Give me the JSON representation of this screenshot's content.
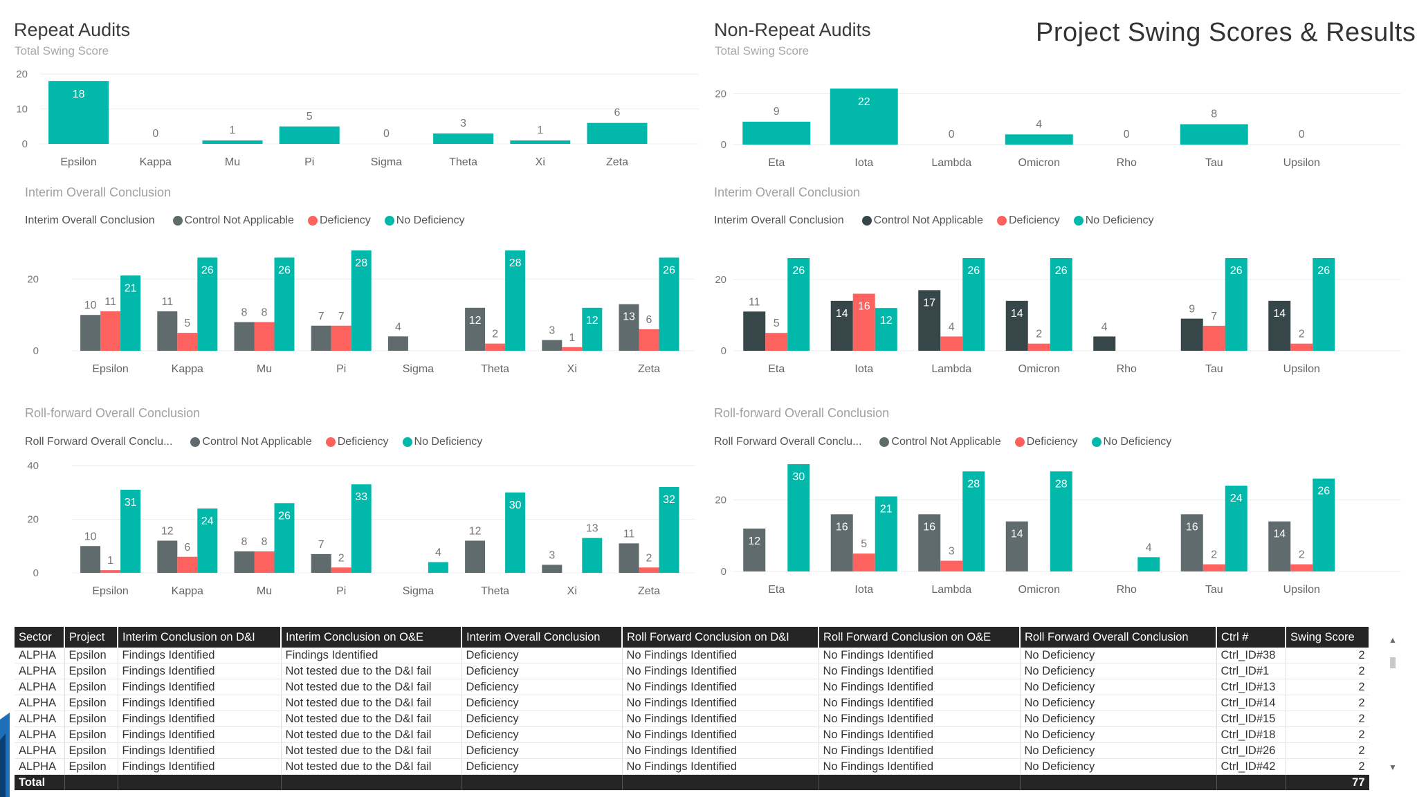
{
  "page_title": "Project Swing Scores & Results",
  "colors": {
    "teal": "#01B8AA",
    "dark": "#374649",
    "gray": "#5F6B6D",
    "red": "#FD625E"
  },
  "legend_labels": {
    "cna": "Control Not Applicable",
    "def": "Deficiency",
    "nodef": "No Deficiency"
  },
  "repeat": {
    "title": "Repeat Audits",
    "subtitle": "Total Swing Score",
    "interim_title": "Interim Overall Conclusion",
    "interim_legend_title": "Interim Overall Conclusion",
    "rollforward_title": "Roll-forward Overall Conclusion",
    "rollforward_legend_title": "Roll Forward Overall Conclu..."
  },
  "nonrepeat": {
    "title": "Non-Repeat Audits",
    "subtitle": "Total Swing Score",
    "interim_title": "Interim Overall Conclusion",
    "interim_legend_title": "Interim Overall Conclusion",
    "rollforward_title": "Roll-forward Overall Conclusion",
    "rollforward_legend_title": "Roll Forward Overall Conclu..."
  },
  "chart_data": [
    {
      "id": "repeat-swing",
      "type": "bar",
      "title": "Repeat Audits",
      "subtitle": "Total Swing Score",
      "categories": [
        "Epsilon",
        "Kappa",
        "Mu",
        "Pi",
        "Sigma",
        "Theta",
        "Xi",
        "Zeta"
      ],
      "series": [
        {
          "name": "Total Swing Score",
          "values": [
            18,
            0,
            1,
            5,
            0,
            3,
            1,
            6
          ]
        }
      ],
      "ylim": [
        0,
        20
      ],
      "yticks": [
        0,
        10,
        20
      ],
      "grid": true
    },
    {
      "id": "nonrepeat-swing",
      "type": "bar",
      "title": "Non-Repeat Audits",
      "subtitle": "Total Swing Score",
      "categories": [
        "Eta",
        "Iota",
        "Lambda",
        "Omicron",
        "Rho",
        "Tau",
        "Upsilon"
      ],
      "series": [
        {
          "name": "Total Swing Score",
          "values": [
            9,
            22,
            0,
            4,
            0,
            8,
            0
          ]
        }
      ],
      "ylim": [
        0,
        22
      ],
      "yticks": [
        0,
        20
      ],
      "grid": true
    },
    {
      "id": "repeat-interim",
      "type": "bar",
      "title": "Interim Overall Conclusion",
      "categories": [
        "Epsilon",
        "Kappa",
        "Mu",
        "Pi",
        "Sigma",
        "Theta",
        "Xi",
        "Zeta"
      ],
      "series": [
        {
          "name": "Control Not Applicable",
          "values": [
            10,
            11,
            8,
            7,
            4,
            12,
            3,
            13
          ]
        },
        {
          "name": "Deficiency",
          "values": [
            11,
            5,
            8,
            7,
            null,
            2,
            1,
            6
          ]
        },
        {
          "name": "No Deficiency",
          "values": [
            21,
            26,
            26,
            28,
            null,
            28,
            12,
            26
          ]
        }
      ],
      "ylim": [
        0,
        28
      ],
      "yticks": [
        0,
        20
      ],
      "grid": true
    },
    {
      "id": "nonrepeat-interim",
      "type": "bar",
      "title": "Interim Overall Conclusion",
      "categories": [
        "Eta",
        "Iota",
        "Lambda",
        "Omicron",
        "Rho",
        "Tau",
        "Upsilon"
      ],
      "series": [
        {
          "name": "Control Not Applicable",
          "values": [
            11,
            14,
            17,
            14,
            4,
            9,
            14
          ]
        },
        {
          "name": "Deficiency",
          "values": [
            5,
            16,
            4,
            2,
            null,
            7,
            2
          ]
        },
        {
          "name": "No Deficiency",
          "values": [
            26,
            12,
            26,
            26,
            null,
            26,
            26
          ]
        }
      ],
      "ylim": [
        0,
        26
      ],
      "yticks": [
        0,
        20
      ],
      "grid": true
    },
    {
      "id": "repeat-rollforward",
      "type": "bar",
      "title": "Roll-forward Overall Conclusion",
      "categories": [
        "Epsilon",
        "Kappa",
        "Mu",
        "Pi",
        "Sigma",
        "Theta",
        "Xi",
        "Zeta"
      ],
      "series": [
        {
          "name": "Control Not Applicable",
          "values": [
            10,
            12,
            8,
            7,
            null,
            12,
            3,
            11
          ]
        },
        {
          "name": "Deficiency",
          "values": [
            1,
            6,
            8,
            2,
            null,
            null,
            null,
            2
          ]
        },
        {
          "name": "No Deficiency",
          "values": [
            31,
            24,
            26,
            33,
            4,
            30,
            13,
            32
          ]
        }
      ],
      "ylim": [
        0,
        40
      ],
      "yticks": [
        0,
        20,
        40
      ],
      "grid": true
    },
    {
      "id": "nonrepeat-rollforward",
      "type": "bar",
      "title": "Roll-forward Overall Conclusion",
      "categories": [
        "Eta",
        "Iota",
        "Lambda",
        "Omicron",
        "Rho",
        "Tau",
        "Upsilon"
      ],
      "series": [
        {
          "name": "Control Not Applicable",
          "values": [
            12,
            16,
            16,
            14,
            null,
            16,
            14
          ]
        },
        {
          "name": "Deficiency",
          "values": [
            null,
            5,
            3,
            null,
            null,
            2,
            2
          ]
        },
        {
          "name": "No Deficiency",
          "values": [
            30,
            21,
            28,
            28,
            4,
            24,
            26
          ]
        }
      ],
      "ylim": [
        0,
        30
      ],
      "yticks": [
        0,
        20
      ],
      "grid": true
    },
    {
      "id": "detail-table",
      "type": "table",
      "columns": [
        "Sector",
        "Project",
        "Interim Conclusion on D&I",
        "Interim Conclusion on O&E",
        "Interim Overall Conclusion",
        "Roll Forward Conclusion on D&I",
        "Roll Forward Conclusion on O&E",
        "Roll Forward Overall Conclusion",
        "Ctrl #",
        "Swing Score"
      ],
      "rows": [
        [
          "ALPHA",
          "Epsilon",
          "Findings Identified",
          "Findings Identified",
          "Deficiency",
          "No Findings Identified",
          "No Findings Identified",
          "No Deficiency",
          "Ctrl_ID#38",
          "2"
        ],
        [
          "ALPHA",
          "Epsilon",
          "Findings Identified",
          "Not tested due to the D&I fail",
          "Deficiency",
          "No Findings Identified",
          "No Findings Identified",
          "No Deficiency",
          "Ctrl_ID#1",
          "2"
        ],
        [
          "ALPHA",
          "Epsilon",
          "Findings Identified",
          "Not tested due to the D&I fail",
          "Deficiency",
          "No Findings Identified",
          "No Findings Identified",
          "No Deficiency",
          "Ctrl_ID#13",
          "2"
        ],
        [
          "ALPHA",
          "Epsilon",
          "Findings Identified",
          "Not tested due to the D&I fail",
          "Deficiency",
          "No Findings Identified",
          "No Findings Identified",
          "No Deficiency",
          "Ctrl_ID#14",
          "2"
        ],
        [
          "ALPHA",
          "Epsilon",
          "Findings Identified",
          "Not tested due to the D&I fail",
          "Deficiency",
          "No Findings Identified",
          "No Findings Identified",
          "No Deficiency",
          "Ctrl_ID#15",
          "2"
        ],
        [
          "ALPHA",
          "Epsilon",
          "Findings Identified",
          "Not tested due to the D&I fail",
          "Deficiency",
          "No Findings Identified",
          "No Findings Identified",
          "No Deficiency",
          "Ctrl_ID#18",
          "2"
        ],
        [
          "ALPHA",
          "Epsilon",
          "Findings Identified",
          "Not tested due to the D&I fail",
          "Deficiency",
          "No Findings Identified",
          "No Findings Identified",
          "No Deficiency",
          "Ctrl_ID#26",
          "2"
        ],
        [
          "ALPHA",
          "Epsilon",
          "Findings Identified",
          "Not tested due to the D&I fail",
          "Deficiency",
          "No Findings Identified",
          "No Findings Identified",
          "No Deficiency",
          "Ctrl_ID#42",
          "2"
        ]
      ],
      "total_label": "Total",
      "total_value": "77"
    }
  ]
}
